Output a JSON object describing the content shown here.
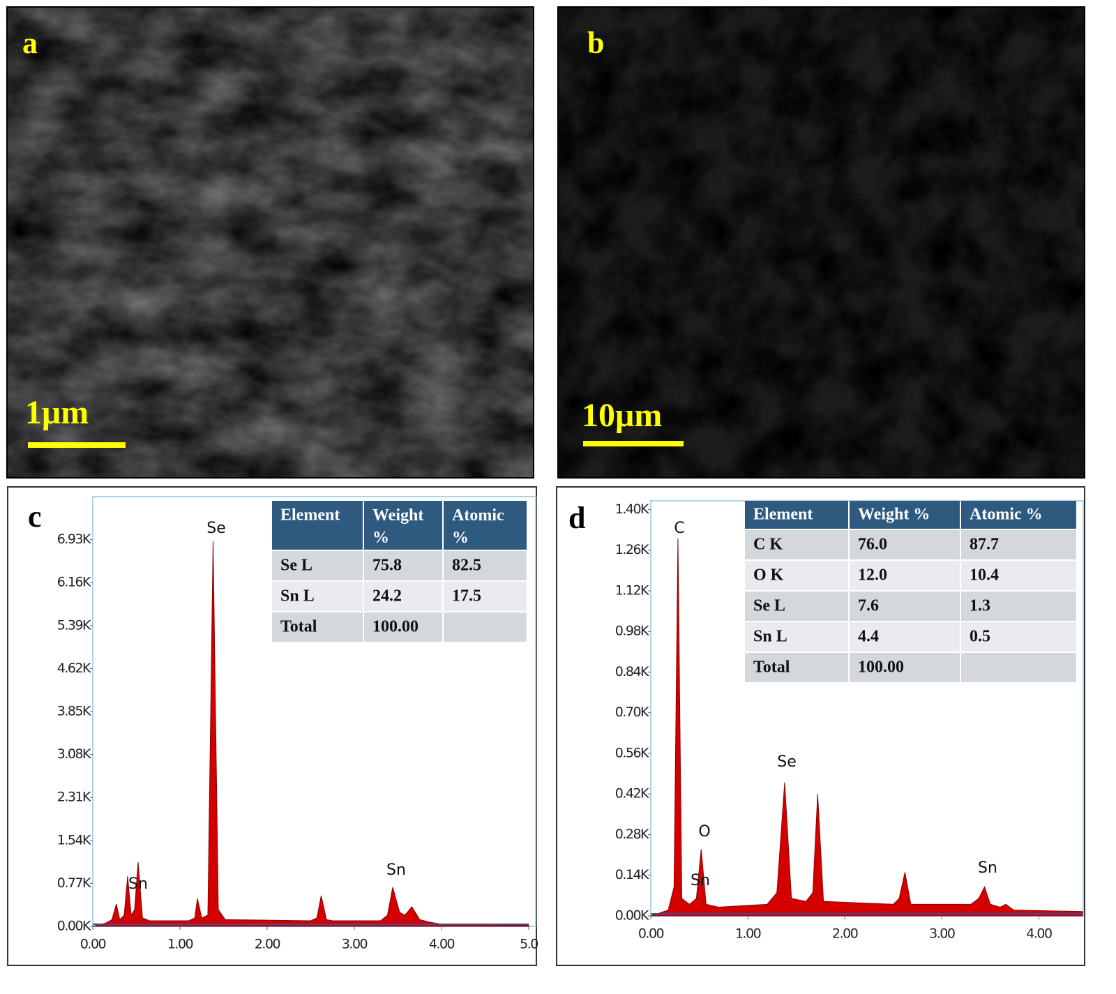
{
  "images": [
    {
      "label": "a",
      "scale_bar": "1μm"
    },
    {
      "label": "b",
      "scale_bar": "10μm"
    }
  ],
  "chart_data": [
    {
      "type": "area",
      "label": "c",
      "color": "#d40000",
      "x": [
        0.0,
        0.15,
        0.22,
        0.27,
        0.31,
        0.36,
        0.4,
        0.44,
        0.48,
        0.52,
        0.57,
        0.65,
        1.1,
        1.17,
        1.2,
        1.25,
        1.32,
        1.38,
        1.44,
        1.52,
        2.5,
        2.57,
        2.62,
        2.68,
        2.75,
        3.3,
        3.38,
        3.44,
        3.52,
        3.58,
        3.66,
        3.75,
        3.85,
        3.92,
        4.0,
        4.5,
        5.0
      ],
      "values": [
        0,
        60,
        120,
        400,
        120,
        200,
        900,
        200,
        300,
        1150,
        150,
        100,
        100,
        150,
        500,
        150,
        200,
        6900,
        300,
        120,
        100,
        150,
        550,
        120,
        100,
        100,
        200,
        700,
        250,
        200,
        350,
        120,
        80,
        60,
        40,
        30,
        20
      ],
      "xlim": [
        0,
        5.0
      ],
      "ylim": [
        0,
        7700
      ],
      "xticks": [
        {
          "value": 0,
          "label": "0.00"
        },
        {
          "value": 1,
          "label": "1.00"
        },
        {
          "value": 2,
          "label": "2.00"
        },
        {
          "value": 3,
          "label": "3.00"
        },
        {
          "value": 4,
          "label": "4.00"
        },
        {
          "value": 5,
          "label": "5.0"
        }
      ],
      "yticks": [
        {
          "value": 0,
          "label": "0.00K"
        },
        {
          "value": 770,
          "label": "0.77K"
        },
        {
          "value": 1540,
          "label": "1.54K"
        },
        {
          "value": 2310,
          "label": "2.31K"
        },
        {
          "value": 3080,
          "label": "3.08K"
        },
        {
          "value": 3850,
          "label": "3.85K"
        },
        {
          "value": 4620,
          "label": "4.62K"
        },
        {
          "value": 5390,
          "label": "5.39K"
        },
        {
          "value": 6160,
          "label": "6.16K"
        },
        {
          "value": 6930,
          "label": "6.93K"
        }
      ],
      "annotations": [
        "Se",
        "Sn",
        "Sn"
      ],
      "table": {
        "header": [
          "Element",
          "Weight %",
          "Atomic %"
        ],
        "rows": [
          [
            "Se L",
            "75.8",
            "82.5"
          ],
          [
            "Sn L",
            "24.2",
            "17.5"
          ],
          [
            "Total",
            "100.00"
          ]
        ]
      }
    },
    {
      "type": "area",
      "label": "d",
      "color": "#d40000",
      "x": [
        0,
        0.18,
        0.24,
        0.28,
        0.32,
        0.4,
        0.47,
        0.52,
        0.57,
        0.7,
        1.2,
        1.3,
        1.38,
        1.45,
        1.6,
        1.67,
        1.72,
        1.78,
        2.5,
        2.56,
        2.62,
        2.68,
        3.3,
        3.38,
        3.44,
        3.5,
        3.6,
        3.66,
        3.74,
        4.45
      ],
      "values": [
        0,
        20,
        100,
        1300,
        60,
        40,
        60,
        230,
        40,
        30,
        40,
        80,
        460,
        60,
        50,
        80,
        420,
        50,
        40,
        60,
        150,
        40,
        40,
        60,
        100,
        40,
        30,
        40,
        20,
        15
      ],
      "xlim": [
        0,
        4.45
      ],
      "ylim": [
        0,
        1430
      ],
      "xticks": [
        {
          "value": 0,
          "label": "0.00"
        },
        {
          "value": 1,
          "label": "1.00"
        },
        {
          "value": 2,
          "label": "2.00"
        },
        {
          "value": 3,
          "label": "3.00"
        },
        {
          "value": 4,
          "label": "4.00"
        }
      ],
      "yticks": [
        {
          "value": 0,
          "label": "0.00K"
        },
        {
          "value": 140,
          "label": "0.14K"
        },
        {
          "value": 280,
          "label": "0.28K"
        },
        {
          "value": 420,
          "label": "0.42K"
        },
        {
          "value": 560,
          "label": "0.56K"
        },
        {
          "value": 700,
          "label": "0.70K"
        },
        {
          "value": 840,
          "label": "0.84K"
        },
        {
          "value": 980,
          "label": "0.98K"
        },
        {
          "value": 1120,
          "label": "1.12K"
        },
        {
          "value": 1260,
          "label": "1.26K"
        },
        {
          "value": 1400,
          "label": "1.40K"
        }
      ],
      "annotations": [
        "C",
        "O",
        "Sn",
        "Se",
        "Sn"
      ],
      "table": {
        "header": [
          "Element",
          "Weight %",
          "Atomic %"
        ],
        "rows": [
          [
            "C K",
            "76.0",
            "87.7"
          ],
          [
            "O K",
            "12.0",
            "10.4"
          ],
          [
            "Se L",
            "7.6",
            "1.3"
          ],
          [
            "Sn L",
            "4.4",
            "0.5"
          ],
          [
            "Total",
            "100.00"
          ]
        ]
      }
    }
  ]
}
